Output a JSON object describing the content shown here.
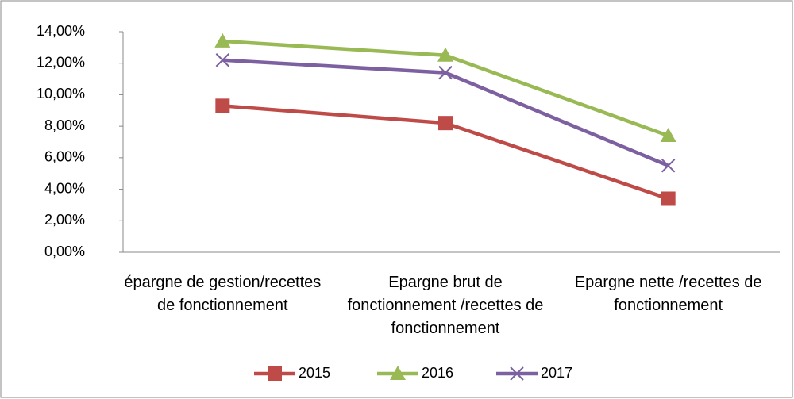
{
  "chart_data": {
    "type": "line",
    "categories": [
      "épargne de gestion/recettes de fonctionnement",
      "Epargne brut de fonctionnement /recettes de fonctionnement",
      "Epargne nette /recettes de fonctionnement"
    ],
    "series": [
      {
        "name": "2015",
        "color": "#be4b48",
        "marker": "square",
        "values": [
          9.3,
          8.2,
          3.4
        ]
      },
      {
        "name": "2016",
        "color": "#98b954",
        "marker": "triangle",
        "values": [
          13.4,
          12.5,
          7.4
        ]
      },
      {
        "name": "2017",
        "color": "#7d60a0",
        "marker": "x",
        "values": [
          12.2,
          11.4,
          5.5
        ]
      }
    ],
    "ylim": [
      0,
      14
    ],
    "yticks": [
      {
        "value": 0,
        "label": "0,00%"
      },
      {
        "value": 2,
        "label": "2,00%"
      },
      {
        "value": 4,
        "label": "4,00%"
      },
      {
        "value": 6,
        "label": "6,00%"
      },
      {
        "value": 8,
        "label": "8,00%"
      },
      {
        "value": 10,
        "label": "10,00%"
      },
      {
        "value": 12,
        "label": "12,00%"
      },
      {
        "value": 14,
        "label": "14,00%"
      }
    ],
    "grid": false,
    "legend": "bottom"
  }
}
